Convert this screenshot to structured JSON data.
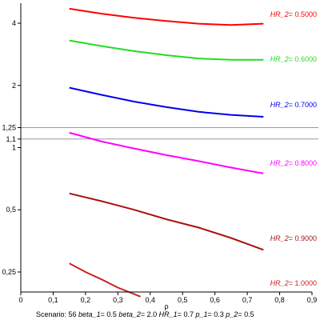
{
  "chart_data": {
    "type": "line",
    "title": "",
    "xlabel": "ρ",
    "ylabel": "",
    "y_scale": "log",
    "xlim": [
      0,
      0.9
    ],
    "ylim": [
      0.2,
      5
    ],
    "x_ticks": [
      "0",
      "0,1",
      "0,2",
      "0,3",
      "0,4",
      "0,5",
      "0,6",
      "0,7",
      "0,8",
      "0,9"
    ],
    "y_ticks": [
      {
        "value": 0.25,
        "label": "0,25"
      },
      {
        "value": 0.5,
        "label": "0,5"
      },
      {
        "value": 1,
        "label": "1"
      },
      {
        "value": 1.1,
        "label": "1,1"
      },
      {
        "value": 1.25,
        "label": "1,25"
      },
      {
        "value": 2,
        "label": "2"
      },
      {
        "value": 4,
        "label": "4"
      }
    ],
    "reference_lines": [
      1.1,
      1.25
    ],
    "grid": false,
    "series": [
      {
        "name": "HR_2",
        "value_text": "= 0.5000",
        "color": "#ff0000",
        "x": [
          0.15,
          0.25,
          0.35,
          0.45,
          0.55,
          0.65,
          0.75
        ],
        "y": [
          4.7,
          4.45,
          4.25,
          4.1,
          3.98,
          3.92,
          3.98
        ]
      },
      {
        "name": "HR_2",
        "value_text": "= 0.6000",
        "color": "#22dd22",
        "x": [
          0.15,
          0.25,
          0.35,
          0.45,
          0.55,
          0.65,
          0.75
        ],
        "y": [
          3.3,
          3.1,
          2.93,
          2.8,
          2.7,
          2.66,
          2.66
        ]
      },
      {
        "name": "HR_2",
        "value_text": "= 0.7000",
        "color": "#0000ee",
        "x": [
          0.15,
          0.25,
          0.35,
          0.45,
          0.55,
          0.65,
          0.75
        ],
        "y": [
          1.95,
          1.8,
          1.67,
          1.57,
          1.49,
          1.44,
          1.41
        ]
      },
      {
        "name": "HR_2",
        "value_text": "= 0.8000",
        "color": "#ff00ff",
        "x": [
          0.15,
          0.25,
          0.35,
          0.45,
          0.55,
          0.65,
          0.75
        ],
        "y": [
          1.18,
          1.07,
          0.99,
          0.92,
          0.86,
          0.8,
          0.75
        ]
      },
      {
        "name": "HR_2",
        "value_text": "= 0.9000",
        "color": "#aa1111",
        "x": [
          0.15,
          0.25,
          0.35,
          0.45,
          0.55,
          0.65,
          0.75
        ],
        "y": [
          0.6,
          0.55,
          0.5,
          0.45,
          0.41,
          0.365,
          0.32
        ]
      },
      {
        "name": "HR_2",
        "value_text": "= 1.0000",
        "color": "#cc2222",
        "x": [
          0.15,
          0.2,
          0.25,
          0.3,
          0.37
        ],
        "y": [
          0.275,
          0.25,
          0.23,
          0.21,
          0.19
        ]
      }
    ],
    "footer": {
      "scenario_label": "Scenario:",
      "scenario_value": "56",
      "params": [
        {
          "name": "beta_1",
          "value": "= 0.5"
        },
        {
          "name": "beta_2",
          "value": "= 2.0"
        },
        {
          "name": "HR_1",
          "value": "= 0.7"
        },
        {
          "name": "p_1",
          "value": "= 0.3"
        },
        {
          "name": "p_2",
          "value": "= 0.5"
        }
      ]
    }
  }
}
